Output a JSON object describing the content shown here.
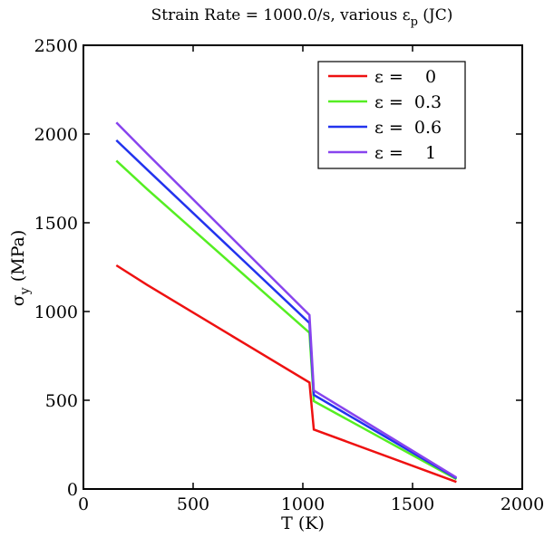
{
  "chart_data": {
    "type": "line",
    "title": "Strain Rate = 1000.0/s, various ε",
    "title_subscript": "p",
    "title_suffix": " (JC)",
    "xlabel": "T (K)",
    "ylabel": "σ",
    "ylabel_subscript": "y",
    "ylabel_suffix": " (MPa)",
    "xlim": [
      0,
      2000
    ],
    "ylim": [
      0,
      2500
    ],
    "xticks": [
      0,
      500,
      1000,
      1500,
      2000
    ],
    "yticks": [
      0,
      500,
      1000,
      1500,
      2000,
      2500
    ],
    "xtick_labels": [
      "0",
      "500",
      "1000",
      "1500",
      "2000"
    ],
    "ytick_labels": [
      "0",
      "500",
      "1000",
      "1500",
      "2000",
      "2500"
    ],
    "grid": false,
    "legend_position": "top-right",
    "series": [
      {
        "name": "ε =    0",
        "color": "#ee1111",
        "x": [
          150,
          290,
          1030,
          1050,
          1700
        ],
        "y": [
          1260,
          1150,
          600,
          335,
          40
        ]
      },
      {
        "name": "ε =  0.3",
        "color": "#55ee22",
        "x": [
          150,
          290,
          1030,
          1050,
          1700
        ],
        "y": [
          1850,
          1690,
          880,
          495,
          55
        ]
      },
      {
        "name": "ε =  0.6",
        "color": "#2233ee",
        "x": [
          150,
          290,
          1030,
          1050,
          1700
        ],
        "y": [
          1965,
          1800,
          935,
          530,
          60
        ]
      },
      {
        "name": "ε =    1",
        "color": "#8844ee",
        "x": [
          150,
          290,
          1030,
          1050,
          1700
        ],
        "y": [
          2065,
          1890,
          980,
          555,
          65
        ]
      }
    ]
  }
}
